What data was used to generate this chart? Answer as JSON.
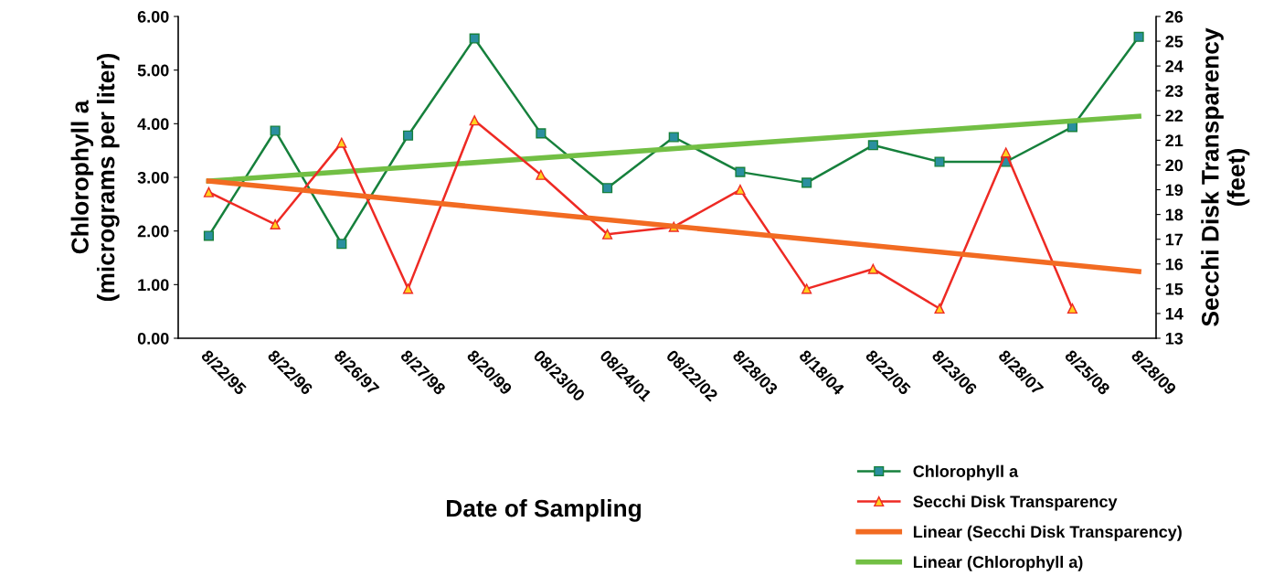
{
  "chart_data": {
    "type": "line",
    "xlabel": "Date of Sampling",
    "ylabel": "Chlorophyll a\n(micrograms per liter)",
    "y2label": "Secchi Disk Transparency\n(feet)",
    "categories": [
      "8/22/95",
      "8/22/96",
      "8/26/97",
      "8/27/98",
      "8/20/99",
      "08/23/00",
      "08/24/01",
      "08/22/02",
      "8/28/03",
      "8/18/04",
      "8/22/05",
      "8/23/06",
      "8/28/07",
      "8/25/08",
      "8/28/09"
    ],
    "series": [
      {
        "name": "Chlorophyll a",
        "color": "#16803c",
        "marker": "square",
        "values": [
          1.91,
          3.87,
          1.76,
          3.78,
          5.59,
          3.82,
          2.8,
          3.75,
          3.1,
          2.9,
          3.6,
          3.29,
          3.29,
          3.94,
          5.62
        ]
      },
      {
        "name": "Secchi Disk Transparency",
        "color": "#ee2a24",
        "marker": "triangle",
        "axis": "y2",
        "values": [
          18.9,
          17.6,
          20.9,
          15.0,
          21.8,
          19.6,
          17.2,
          17.5,
          19.0,
          15.0,
          15.8,
          14.2,
          20.5,
          14.2,
          null
        ]
      },
      {
        "name": "Linear (Secchi Disk Transparency)",
        "color": "#f26b22",
        "marker": "none",
        "axis": "y2",
        "x": [
          "8/22/95",
          "8/28/09"
        ],
        "values": [
          19.35,
          15.7
        ]
      },
      {
        "name": "Linear (Chlorophyll a)",
        "color": "#72bf44",
        "marker": "none",
        "x": [
          "8/22/95",
          "8/28/09"
        ],
        "values": [
          2.93,
          4.14
        ]
      }
    ],
    "ylim": [
      0,
      6
    ],
    "yticks": [
      {
        "value": 0,
        "label": "0.00"
      },
      {
        "value": 1,
        "label": "1.00"
      },
      {
        "value": 2,
        "label": "2.00"
      },
      {
        "value": 3,
        "label": "3.00"
      },
      {
        "value": 4,
        "label": "4.00"
      },
      {
        "value": 5,
        "label": "5.00"
      },
      {
        "value": 6,
        "label": "6.00"
      }
    ],
    "y2lim": [
      13,
      26
    ],
    "y2ticks": [
      13,
      14,
      15,
      16,
      17,
      18,
      19,
      20,
      21,
      22,
      23,
      24,
      25,
      26
    ],
    "grid": false,
    "legend": "bottom right"
  }
}
